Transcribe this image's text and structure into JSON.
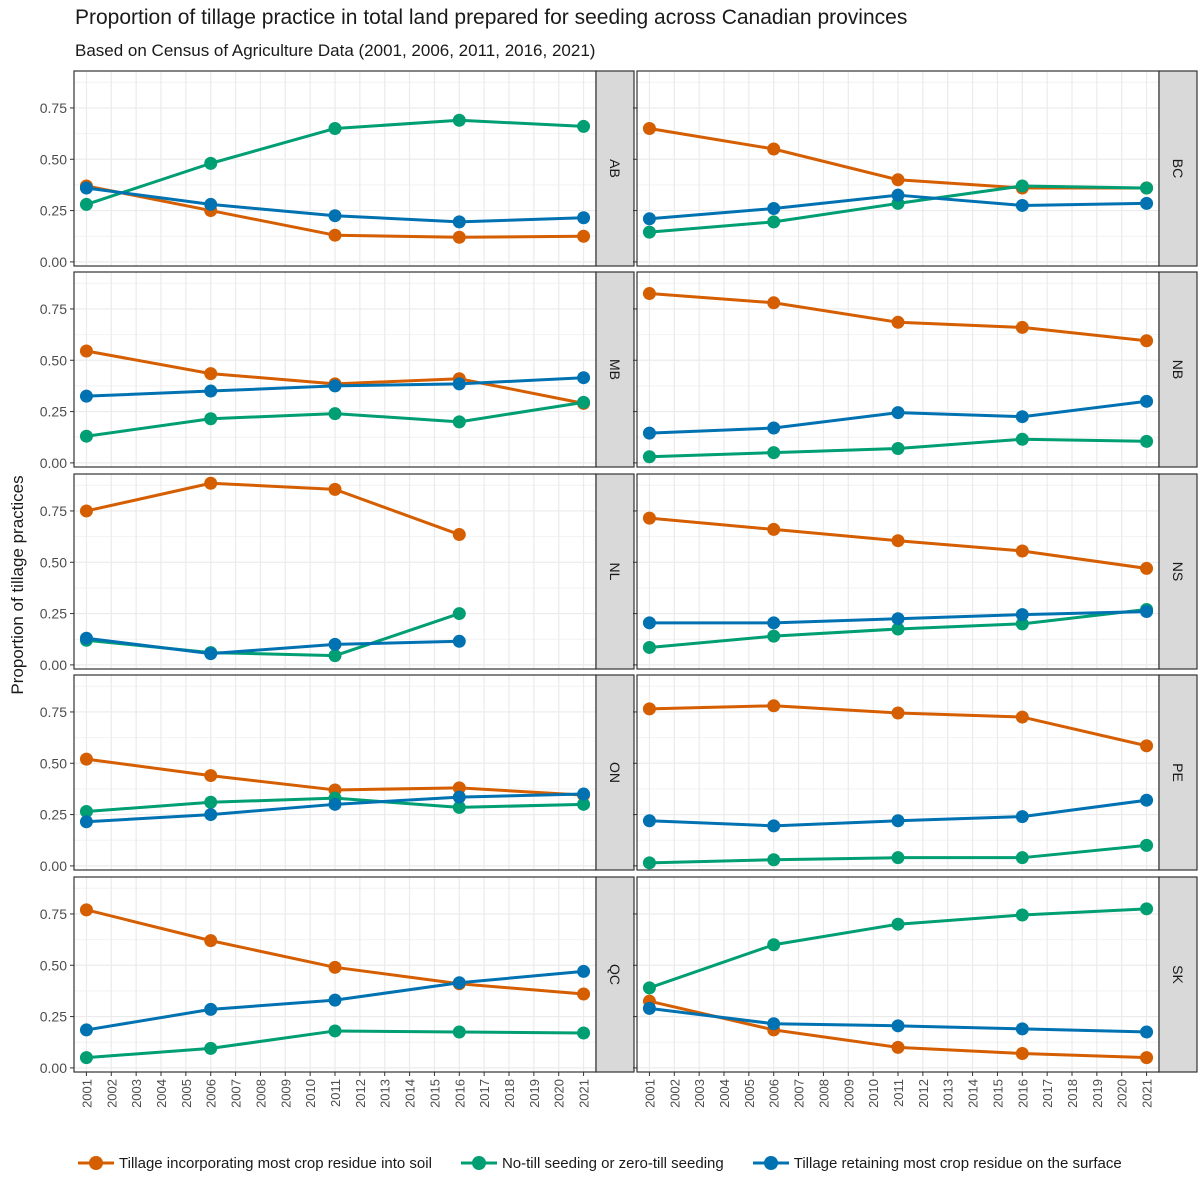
{
  "chart_data": {
    "type": "line",
    "title": "Proportion of tillage practice in total land prepared for seeding across Canadian provinces",
    "subtitle": "Based on Census of Agriculture Data (2001, 2006, 2011, 2016, 2021)",
    "ylabel": "Proportion of tillage practices",
    "xlabel": "",
    "ylim": [
      -0.02,
      0.93
    ],
    "xlim": [
      2000.5,
      2021.5
    ],
    "y_ticks": [
      "0.00",
      "0.25",
      "0.50",
      "0.75"
    ],
    "x_ticks": [
      "2001",
      "2002",
      "2003",
      "2004",
      "2005",
      "2006",
      "2007",
      "2008",
      "2009",
      "2010",
      "2011",
      "2012",
      "2013",
      "2014",
      "2015",
      "2016",
      "2017",
      "2018",
      "2019",
      "2020",
      "2021"
    ],
    "legend_position": "bottom",
    "series_styles": [
      {
        "name": "Tillage incorporating most crop residue into soil",
        "color": "#D55E00"
      },
      {
        "name": "No-till seeding or zero-till seeding",
        "color": "#009E73"
      },
      {
        "name": "Tillage retaining most crop residue on the surface",
        "color": "#0072B2"
      }
    ],
    "panels": [
      {
        "province": "AB",
        "series": [
          {
            "name": "Tillage incorporating most crop residue into soil",
            "x": [
              2001,
              2006,
              2011,
              2016,
              2021
            ],
            "values": [
              0.37,
              0.25,
              0.13,
              0.12,
              0.125
            ]
          },
          {
            "name": "No-till seeding or zero-till seeding",
            "x": [
              2001,
              2006,
              2011,
              2016,
              2021
            ],
            "values": [
              0.28,
              0.48,
              0.65,
              0.69,
              0.66
            ]
          },
          {
            "name": "Tillage retaining most crop residue on the surface",
            "x": [
              2001,
              2006,
              2011,
              2016,
              2021
            ],
            "values": [
              0.36,
              0.28,
              0.225,
              0.195,
              0.215
            ]
          }
        ]
      },
      {
        "province": "BC",
        "series": [
          {
            "name": "Tillage incorporating most crop residue into soil",
            "x": [
              2001,
              2006,
              2011,
              2016,
              2021
            ],
            "values": [
              0.65,
              0.55,
              0.4,
              0.36,
              0.36
            ]
          },
          {
            "name": "No-till seeding or zero-till seeding",
            "x": [
              2001,
              2006,
              2011,
              2016,
              2021
            ],
            "values": [
              0.145,
              0.195,
              0.285,
              0.37,
              0.36
            ]
          },
          {
            "name": "Tillage retaining most crop residue on the surface",
            "x": [
              2001,
              2006,
              2011,
              2016,
              2021
            ],
            "values": [
              0.21,
              0.26,
              0.325,
              0.275,
              0.285
            ]
          }
        ]
      },
      {
        "province": "MB",
        "series": [
          {
            "name": "Tillage incorporating most crop residue into soil",
            "x": [
              2001,
              2006,
              2011,
              2016,
              2021
            ],
            "values": [
              0.545,
              0.435,
              0.385,
              0.41,
              0.29
            ]
          },
          {
            "name": "No-till seeding or zero-till seeding",
            "x": [
              2001,
              2006,
              2011,
              2016,
              2021
            ],
            "values": [
              0.13,
              0.215,
              0.24,
              0.2,
              0.295
            ]
          },
          {
            "name": "Tillage retaining most crop residue on the surface",
            "x": [
              2001,
              2006,
              2011,
              2016,
              2021
            ],
            "values": [
              0.325,
              0.35,
              0.375,
              0.385,
              0.415
            ]
          }
        ]
      },
      {
        "province": "NB",
        "series": [
          {
            "name": "Tillage incorporating most crop residue into soil",
            "x": [
              2001,
              2006,
              2011,
              2016,
              2021
            ],
            "values": [
              0.825,
              0.78,
              0.685,
              0.66,
              0.595
            ]
          },
          {
            "name": "No-till seeding or zero-till seeding",
            "x": [
              2001,
              2006,
              2011,
              2016,
              2021
            ],
            "values": [
              0.03,
              0.05,
              0.07,
              0.115,
              0.105
            ]
          },
          {
            "name": "Tillage retaining most crop residue on the surface",
            "x": [
              2001,
              2006,
              2011,
              2016,
              2021
            ],
            "values": [
              0.145,
              0.17,
              0.245,
              0.225,
              0.3
            ]
          }
        ]
      },
      {
        "province": "NL",
        "series": [
          {
            "name": "Tillage incorporating most crop residue into soil",
            "x": [
              2001,
              2006,
              2011,
              2016
            ],
            "values": [
              0.75,
              0.885,
              0.855,
              0.635
            ]
          },
          {
            "name": "No-till seeding or zero-till seeding",
            "x": [
              2001,
              2006,
              2011,
              2016
            ],
            "values": [
              0.12,
              0.06,
              0.045,
              0.25
            ]
          },
          {
            "name": "Tillage retaining most crop residue on the surface",
            "x": [
              2001,
              2006,
              2011,
              2016
            ],
            "values": [
              0.13,
              0.055,
              0.1,
              0.115
            ]
          }
        ]
      },
      {
        "province": "NS",
        "series": [
          {
            "name": "Tillage incorporating most crop residue into soil",
            "x": [
              2001,
              2006,
              2011,
              2016,
              2021
            ],
            "values": [
              0.715,
              0.66,
              0.605,
              0.555,
              0.47
            ]
          },
          {
            "name": "No-till seeding or zero-till seeding",
            "x": [
              2001,
              2006,
              2011,
              2016,
              2021
            ],
            "values": [
              0.085,
              0.14,
              0.175,
              0.2,
              0.27
            ]
          },
          {
            "name": "Tillage retaining most crop residue on the surface",
            "x": [
              2001,
              2006,
              2011,
              2016,
              2021
            ],
            "values": [
              0.205,
              0.205,
              0.225,
              0.245,
              0.26
            ]
          }
        ]
      },
      {
        "province": "ON",
        "series": [
          {
            "name": "Tillage incorporating most crop residue into soil",
            "x": [
              2001,
              2006,
              2011,
              2016,
              2021
            ],
            "values": [
              0.52,
              0.44,
              0.37,
              0.38,
              0.345
            ]
          },
          {
            "name": "No-till seeding or zero-till seeding",
            "x": [
              2001,
              2006,
              2011,
              2016,
              2021
            ],
            "values": [
              0.265,
              0.31,
              0.33,
              0.285,
              0.3
            ]
          },
          {
            "name": "Tillage retaining most crop residue on the surface",
            "x": [
              2001,
              2006,
              2011,
              2016,
              2021
            ],
            "values": [
              0.215,
              0.25,
              0.3,
              0.335,
              0.35
            ]
          }
        ]
      },
      {
        "province": "PE",
        "series": [
          {
            "name": "Tillage incorporating most crop residue into soil",
            "x": [
              2001,
              2006,
              2011,
              2016,
              2021
            ],
            "values": [
              0.765,
              0.78,
              0.745,
              0.725,
              0.585
            ]
          },
          {
            "name": "No-till seeding or zero-till seeding",
            "x": [
              2001,
              2006,
              2011,
              2016,
              2021
            ],
            "values": [
              0.015,
              0.03,
              0.04,
              0.04,
              0.1
            ]
          },
          {
            "name": "Tillage retaining most crop residue on the surface",
            "x": [
              2001,
              2006,
              2011,
              2016,
              2021
            ],
            "values": [
              0.22,
              0.195,
              0.22,
              0.24,
              0.32
            ]
          }
        ]
      },
      {
        "province": "QC",
        "series": [
          {
            "name": "Tillage incorporating most crop residue into soil",
            "x": [
              2001,
              2006,
              2011,
              2016,
              2021
            ],
            "values": [
              0.77,
              0.62,
              0.49,
              0.41,
              0.36
            ]
          },
          {
            "name": "No-till seeding or zero-till seeding",
            "x": [
              2001,
              2006,
              2011,
              2016,
              2021
            ],
            "values": [
              0.05,
              0.095,
              0.18,
              0.175,
              0.17
            ]
          },
          {
            "name": "Tillage retaining most crop residue on the surface",
            "x": [
              2001,
              2006,
              2011,
              2016,
              2021
            ],
            "values": [
              0.185,
              0.285,
              0.33,
              0.415,
              0.47
            ]
          }
        ]
      },
      {
        "province": "SK",
        "series": [
          {
            "name": "Tillage incorporating most crop residue into soil",
            "x": [
              2001,
              2006,
              2011,
              2016,
              2021
            ],
            "values": [
              0.325,
              0.185,
              0.1,
              0.07,
              0.05
            ]
          },
          {
            "name": "No-till seeding or zero-till seeding",
            "x": [
              2001,
              2006,
              2011,
              2016,
              2021
            ],
            "values": [
              0.39,
              0.6,
              0.7,
              0.745,
              0.775
            ]
          },
          {
            "name": "Tillage retaining most crop residue on the surface",
            "x": [
              2001,
              2006,
              2011,
              2016,
              2021
            ],
            "values": [
              0.29,
              0.215,
              0.205,
              0.19,
              0.175
            ]
          }
        ]
      }
    ]
  },
  "legend": [
    {
      "label": "Tillage incorporating most crop residue into soil",
      "color": "#D55E00"
    },
    {
      "label": "No-till seeding or zero-till seeding",
      "color": "#009E73"
    },
    {
      "label": "Tillage retaining most crop residue on the surface",
      "color": "#0072B2"
    }
  ]
}
